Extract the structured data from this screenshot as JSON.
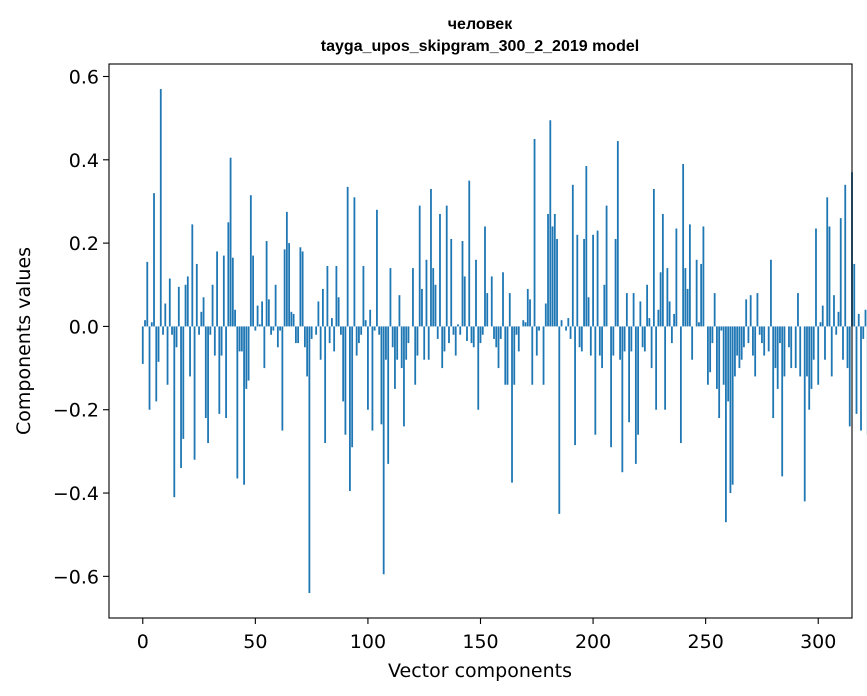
{
  "chart_data": {
    "type": "bar",
    "title": "человек",
    "subtitle": "tayga_upos_skipgram_300_2_2019 model",
    "xlabel": "Vector components",
    "ylabel": "Components values",
    "xlim": [
      -15,
      315
    ],
    "ylim": [
      -0.7,
      0.63
    ],
    "xticks": [
      0,
      50,
      100,
      150,
      200,
      250,
      300
    ],
    "xtick_labels": [
      "0",
      "50",
      "100",
      "150",
      "200",
      "250",
      "300"
    ],
    "yticks": [
      -0.6,
      -0.4,
      -0.2,
      0.0,
      0.2,
      0.4,
      0.6
    ],
    "ytick_labels": [
      "−0.6",
      "−0.4",
      "−0.2",
      "0.0",
      "0.2",
      "0.4",
      "0.6"
    ],
    "color": "#1f77b4",
    "values": [
      -0.09,
      0.015,
      0.155,
      -0.2,
      0.01,
      0.32,
      -0.18,
      -0.085,
      0.57,
      -0.02,
      0.055,
      -0.14,
      0.115,
      -0.02,
      -0.41,
      -0.05,
      0.095,
      -0.34,
      -0.27,
      0.1,
      0.12,
      -0.12,
      0.245,
      -0.32,
      0.15,
      -0.02,
      0.035,
      0.07,
      -0.22,
      -0.28,
      -0.02,
      0.1,
      -0.07,
      0.18,
      -0.21,
      -0.07,
      0.17,
      -0.22,
      0.25,
      0.405,
      0.165,
      0.04,
      -0.365,
      -0.06,
      -0.06,
      -0.38,
      -0.15,
      -0.13,
      0.315,
      0.17,
      -0.01,
      0.05,
      0.005,
      0.06,
      -0.1,
      0.205,
      0.065,
      -0.02,
      -0.01,
      0.1,
      -0.05,
      -0.01,
      -0.25,
      0.185,
      0.275,
      0.2,
      0.035,
      0.03,
      -0.04,
      -0.04,
      0.19,
      0.18,
      -0.05,
      -0.12,
      -0.64,
      -0.03,
      0.0,
      -0.02,
      0.06,
      -0.08,
      0.09,
      -0.28,
      0.145,
      -0.04,
      0.02,
      -0.06,
      0.145,
      0.07,
      -0.02,
      -0.18,
      -0.26,
      0.335,
      -0.395,
      -0.29,
      0.31,
      -0.07,
      -0.04,
      -0.02,
      0.145,
      0.015,
      -0.2,
      0.04,
      -0.25,
      -0.01,
      0.28,
      -0.02,
      -0.235,
      -0.595,
      -0.08,
      -0.33,
      0.14,
      -0.05,
      -0.15,
      -0.08,
      0.075,
      -0.1,
      -0.24,
      -0.08,
      -0.04,
      0.0,
      0.14,
      -0.14,
      -0.07,
      0.29,
      0.09,
      -0.08,
      0.16,
      -0.08,
      0.33,
      0.14,
      0.1,
      -0.03,
      0.27,
      -0.1,
      -0.06,
      0.29,
      -0.04,
      0.21,
      -0.02,
      -0.07,
      0.005,
      -0.02,
      0.205,
      0.12,
      -0.035,
      0.35,
      -0.04,
      -0.05,
      0.16,
      -0.2,
      -0.04,
      -0.02,
      0.24,
      0.08,
      0.0,
      0.12,
      -0.03,
      -0.05,
      -0.1,
      -0.03,
      0.13,
      -0.14,
      -0.14,
      0.08,
      -0.375,
      -0.14,
      -0.02,
      -0.06,
      0.0,
      0.015,
      0.01,
      0.09,
      0.065,
      -0.14,
      0.45,
      -0.07,
      -0.01,
      0.0,
      -0.14,
      0.055,
      0.27,
      0.495,
      0.24,
      0.27,
      0.21,
      -0.45,
      0.015,
      0.0,
      -0.01,
      0.02,
      -0.03,
      0.34,
      -0.285,
      0.22,
      -0.05,
      -0.06,
      0.21,
      0.385,
      0.07,
      -0.07,
      0.22,
      -0.26,
      0.23,
      -0.07,
      -0.1,
      0.1,
      0.29,
      0.0,
      -0.29,
      -0.07,
      0.21,
      0.445,
      -0.08,
      -0.35,
      -0.06,
      0.08,
      -0.23,
      -0.06,
      0.08,
      -0.33,
      -0.26,
      0.06,
      -0.05,
      -0.06,
      0.1,
      0.02,
      -0.1,
      0.33,
      -0.2,
      0.04,
      0.13,
      0.27,
      -0.2,
      0.14,
      0.06,
      -0.04,
      0.03,
      0.235,
      0.0,
      -0.28,
      0.39,
      0.14,
      0.09,
      0.245,
      -0.08,
      0.0,
      0.16,
      0.01,
      0.15,
      0.24,
      0.0,
      -0.14,
      -0.11,
      -0.04,
      0.08,
      -0.15,
      -0.22,
      -0.01,
      -0.14,
      -0.47,
      -0.18,
      -0.4,
      -0.38,
      -0.12,
      -0.07,
      -0.1,
      -0.08,
      -0.05,
      0.065,
      -0.04,
      0.075,
      -0.07,
      -0.12,
      0.08,
      -0.02,
      -0.04,
      -0.07,
      0.0,
      -0.06,
      0.16,
      -0.22,
      -0.1,
      -0.15,
      -0.04,
      -0.36,
      -0.12,
      0.0,
      -0.05,
      -0.1,
      0.0,
      -0.1,
      0.08,
      -0.12,
      0.0,
      -0.42,
      -0.12,
      -0.2,
      -0.15,
      -0.08,
      0.235,
      -0.14,
      0.01,
      0.05,
      -0.08,
      0.31,
      0.24,
      -0.12,
      0.075,
      -0.02,
      0.035,
      0.26,
      -0.08,
      0.34,
      -0.1,
      -0.24,
      0.37,
      0.15,
      -0.21,
      0.03,
      -0.25,
      -0.03,
      0.04,
      -0.26
    ]
  }
}
